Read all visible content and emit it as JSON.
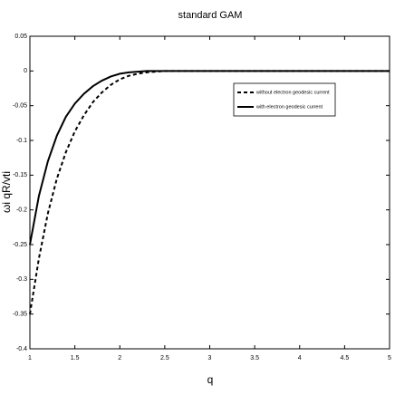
{
  "chart_data": {
    "type": "line",
    "title": "standard GAM",
    "xlabel": "q",
    "ylabel": "ωi qR/vti",
    "x": [
      1,
      1.1,
      1.2,
      1.3,
      1.4,
      1.5,
      1.6,
      1.7,
      1.8,
      1.9,
      2.0,
      2.1,
      2.2,
      2.3,
      2.4,
      2.5,
      3,
      3.5,
      4,
      4.5,
      5
    ],
    "series": [
      {
        "name": "without electron geodesic current",
        "color": "#000000",
        "linestyle": "dashed",
        "values": [
          -0.35,
          -0.27,
          -0.205,
          -0.155,
          -0.117,
          -0.087,
          -0.064,
          -0.045,
          -0.031,
          -0.02,
          -0.012,
          -0.007,
          -0.004,
          -0.002,
          -0.001,
          0,
          0,
          0,
          0,
          0,
          0
        ]
      },
      {
        "name": "with electron geodesic current",
        "color": "#000000",
        "linestyle": "solid",
        "values": [
          -0.25,
          -0.18,
          -0.13,
          -0.093,
          -0.066,
          -0.047,
          -0.033,
          -0.022,
          -0.014,
          -0.008,
          -0.004,
          -0.002,
          -0.001,
          0,
          0,
          0,
          0,
          0,
          0,
          0,
          0
        ]
      }
    ],
    "xlim": [
      1,
      5
    ],
    "ylim": [
      -0.4,
      0.05
    ],
    "xticks": [
      1,
      1.5,
      2,
      2.5,
      3,
      3.5,
      4,
      4.5,
      5
    ],
    "yticks": [
      -0.4,
      -0.35,
      -0.3,
      -0.25,
      -0.2,
      -0.15,
      -0.1,
      -0.05,
      0,
      0.05
    ],
    "legend": "upper right",
    "grid": false
  }
}
